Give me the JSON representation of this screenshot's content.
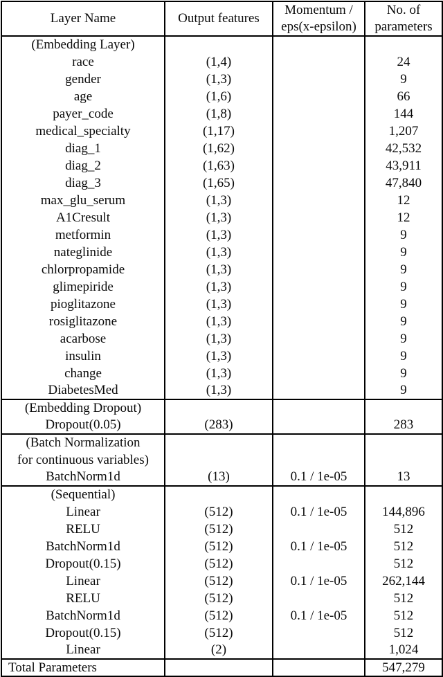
{
  "table": {
    "headers": [
      {
        "lines": [
          "Layer Name"
        ]
      },
      {
        "lines": [
          "Output features"
        ]
      },
      {
        "lines": [
          "Momentum /",
          "eps(x-epsilon)"
        ]
      },
      {
        "lines": [
          "No. of",
          "parameters"
        ]
      }
    ],
    "sections": [
      {
        "name": "embedding-layer",
        "rows": [
          {
            "header": true,
            "name": "(Embedding Layer)",
            "features": "",
            "momentum": "",
            "params": ""
          },
          {
            "header": false,
            "name": "race",
            "features": "(1,4)",
            "momentum": "",
            "params": "24"
          },
          {
            "header": false,
            "name": "gender",
            "features": "(1,3)",
            "momentum": "",
            "params": "9"
          },
          {
            "header": false,
            "name": "age",
            "features": "(1,6)",
            "momentum": "",
            "params": "66"
          },
          {
            "header": false,
            "name": "payer_code",
            "features": "(1,8)",
            "momentum": "",
            "params": "144"
          },
          {
            "header": false,
            "name": "medical_specialty",
            "features": "(1,17)",
            "momentum": "",
            "params": "1,207"
          },
          {
            "header": false,
            "name": "diag_1",
            "features": "(1,62)",
            "momentum": "",
            "params": "42,532"
          },
          {
            "header": false,
            "name": "diag_2",
            "features": "(1,63)",
            "momentum": "",
            "params": "43,911"
          },
          {
            "header": false,
            "name": "diag_3",
            "features": "(1,65)",
            "momentum": "",
            "params": "47,840"
          },
          {
            "header": false,
            "name": "max_glu_serum",
            "features": "(1,3)",
            "momentum": "",
            "params": "12"
          },
          {
            "header": false,
            "name": "A1Cresult",
            "features": "(1,3)",
            "momentum": "",
            "params": "12"
          },
          {
            "header": false,
            "name": "metformin",
            "features": "(1,3)",
            "momentum": "",
            "params": "9"
          },
          {
            "header": false,
            "name": "nateglinide",
            "features": "(1,3)",
            "momentum": "",
            "params": "9"
          },
          {
            "header": false,
            "name": "chlorpropamide",
            "features": "(1,3)",
            "momentum": "",
            "params": "9"
          },
          {
            "header": false,
            "name": "glimepiride",
            "features": "(1,3)",
            "momentum": "",
            "params": "9"
          },
          {
            "header": false,
            "name": "pioglitazone",
            "features": "(1,3)",
            "momentum": "",
            "params": "9"
          },
          {
            "header": false,
            "name": "rosiglitazone",
            "features": "(1,3)",
            "momentum": "",
            "params": "9"
          },
          {
            "header": false,
            "name": "acarbose",
            "features": "(1,3)",
            "momentum": "",
            "params": "9"
          },
          {
            "header": false,
            "name": "insulin",
            "features": "(1,3)",
            "momentum": "",
            "params": "9"
          },
          {
            "header": false,
            "name": "change",
            "features": "(1,3)",
            "momentum": "",
            "params": "9"
          },
          {
            "header": false,
            "name": "DiabetesMed",
            "features": "(1,3)",
            "momentum": "",
            "params": "9"
          }
        ]
      },
      {
        "name": "embedding-dropout",
        "rows": [
          {
            "header": true,
            "name": "(Embedding Dropout)",
            "features": "",
            "momentum": "",
            "params": ""
          },
          {
            "header": false,
            "name": "Dropout(0.05)",
            "features": "(283)",
            "momentum": "",
            "params": "283"
          }
        ]
      },
      {
        "name": "batch-normalization",
        "rows": [
          {
            "header": true,
            "name": "(Batch Normalization",
            "features": "",
            "momentum": "",
            "params": ""
          },
          {
            "header": true,
            "name": "for continuous variables)",
            "features": "",
            "momentum": "",
            "params": ""
          },
          {
            "header": false,
            "name": "BatchNorm1d",
            "features": "(13)",
            "momentum": "0.1 / 1e-05",
            "params": "13"
          }
        ]
      },
      {
        "name": "sequential",
        "rows": [
          {
            "header": true,
            "name": "(Sequential)",
            "features": "",
            "momentum": "",
            "params": ""
          },
          {
            "header": false,
            "name": "Linear",
            "features": "(512)",
            "momentum": "0.1 / 1e-05",
            "params": "144,896"
          },
          {
            "header": false,
            "name": "RELU",
            "features": "(512)",
            "momentum": "",
            "params": "512"
          },
          {
            "header": false,
            "name": "BatchNorm1d",
            "features": "(512)",
            "momentum": "0.1 / 1e-05",
            "params": "512"
          },
          {
            "header": false,
            "name": "Dropout(0.15)",
            "features": "(512)",
            "momentum": "",
            "params": "512"
          },
          {
            "header": false,
            "name": "Linear",
            "features": "(512)",
            "momentum": "0.1 / 1e-05",
            "params": "262,144"
          },
          {
            "header": false,
            "name": "RELU",
            "features": "(512)",
            "momentum": "",
            "params": "512"
          },
          {
            "header": false,
            "name": "BatchNorm1d",
            "features": "(512)",
            "momentum": "0.1 / 1e-05",
            "params": "512"
          },
          {
            "header": false,
            "name": "Dropout(0.15)",
            "features": "(512)",
            "momentum": "",
            "params": "512"
          },
          {
            "header": false,
            "name": "Linear",
            "features": "(2)",
            "momentum": "",
            "params": "1,024"
          }
        ]
      },
      {
        "name": "total",
        "rows": [
          {
            "header": false,
            "align": "left",
            "name": "Total Parameters",
            "features": "",
            "momentum": "",
            "params": "547,279"
          }
        ]
      }
    ]
  }
}
